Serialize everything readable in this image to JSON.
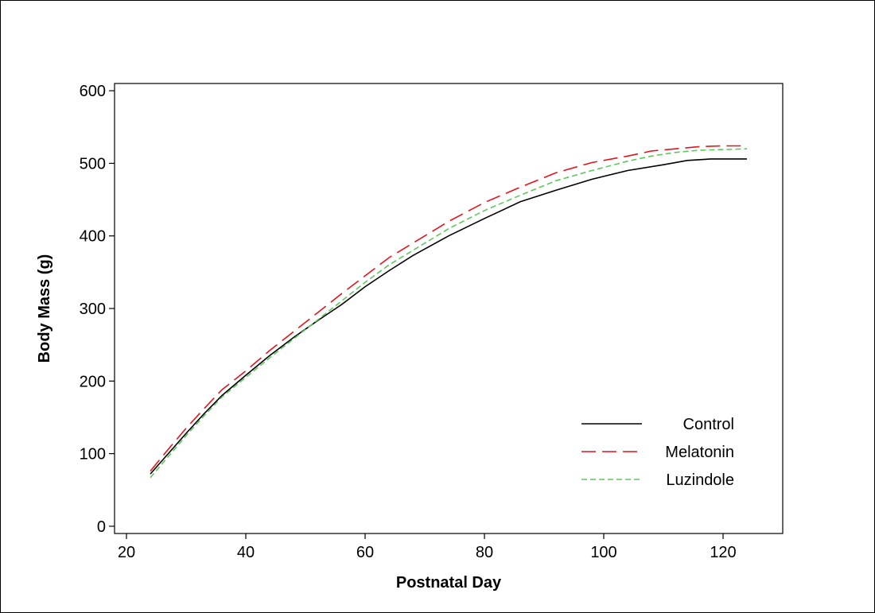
{
  "chart_data": {
    "type": "line",
    "title": "",
    "xlabel": "Postnatal Day",
    "ylabel": "Body Mass (g)",
    "xlim": [
      18,
      130
    ],
    "ylim": [
      -10,
      610
    ],
    "xticks": [
      20,
      40,
      60,
      80,
      100,
      120
    ],
    "yticks": [
      0,
      100,
      200,
      300,
      400,
      500,
      600
    ],
    "grid": false,
    "legend_position": "bottom-right",
    "series": [
      {
        "name": "Control",
        "color": "#000000",
        "dash": "solid",
        "x": [
          24,
          27,
          30,
          33,
          36,
          40,
          44,
          48,
          52,
          56,
          60,
          64,
          68,
          74,
          80,
          86,
          92,
          98,
          104,
          110,
          114,
          118,
          124
        ],
        "y": [
          72,
          100,
          128,
          155,
          180,
          208,
          235,
          260,
          283,
          305,
          330,
          352,
          373,
          400,
          424,
          447,
          463,
          478,
          490,
          498,
          504,
          506,
          506
        ]
      },
      {
        "name": "Melatonin",
        "color": "#e4141b",
        "dash": "long-dash",
        "x": [
          24,
          27,
          30,
          33,
          36,
          40,
          44,
          48,
          52,
          56,
          60,
          64,
          68,
          74,
          80,
          86,
          92,
          98,
          104,
          108,
          112,
          116,
          120,
          124
        ],
        "y": [
          76,
          106,
          135,
          162,
          188,
          214,
          242,
          268,
          294,
          320,
          345,
          370,
          390,
          420,
          446,
          467,
          487,
          501,
          510,
          517,
          520,
          523,
          524,
          524
        ]
      },
      {
        "name": "Luzindole",
        "color": "#5ec85e",
        "dash": "short-dash",
        "x": [
          24,
          27,
          30,
          33,
          36,
          40,
          44,
          48,
          52,
          56,
          60,
          64,
          68,
          74,
          80,
          86,
          92,
          98,
          104,
          108,
          112,
          116,
          120,
          124
        ],
        "y": [
          67,
          96,
          125,
          152,
          178,
          205,
          232,
          258,
          284,
          310,
          336,
          360,
          380,
          410,
          435,
          456,
          476,
          490,
          503,
          510,
          515,
          518,
          519,
          520
        ]
      }
    ]
  }
}
